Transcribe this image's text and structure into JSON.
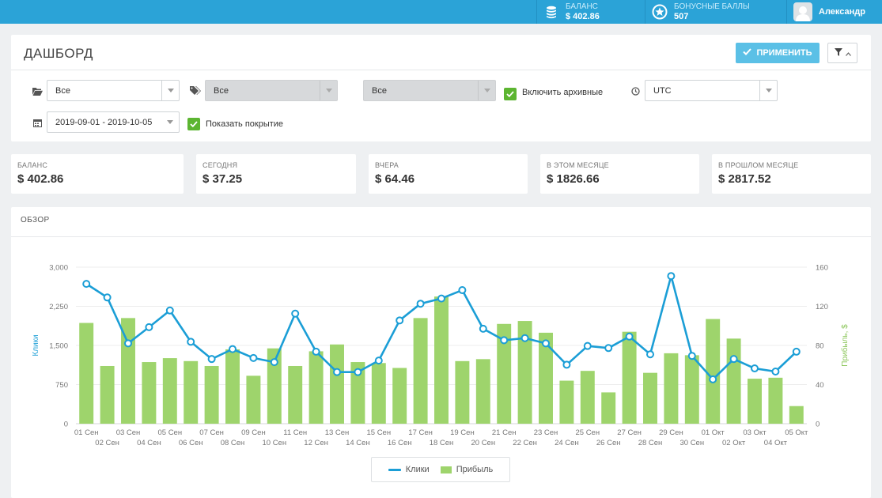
{
  "topbar": {
    "balance_label": "БАЛАНС",
    "balance_value": "$ 402.86",
    "bonus_label": "БОНУСНЫЕ БАЛЛЫ",
    "bonus_value": "507",
    "user_name": "Александр"
  },
  "header": {
    "title": "ДАШБОРД",
    "apply_label": "ПРИМЕНИТЬ"
  },
  "filters": {
    "folder_select": "Все",
    "tag_select": "Все",
    "third_select": "Все",
    "include_archived_label": "Включить архивные",
    "include_archived_checked": true,
    "timezone_select": "UTC",
    "date_range": "2019-09-01 - 2019-10-05",
    "show_coverage_label": "Показать покрытие",
    "show_coverage_checked": true
  },
  "stats": [
    {
      "label": "БАЛАНС",
      "value": "$ 402.86"
    },
    {
      "label": "СЕГОДНЯ",
      "value": "$ 37.25"
    },
    {
      "label": "ВЧЕРА",
      "value": "$ 64.46"
    },
    {
      "label": "В ЭТОМ МЕСЯЦЕ",
      "value": "$ 1826.66"
    },
    {
      "label": "В ПРОШЛОМ МЕСЯЦЕ",
      "value": "$ 2817.52"
    }
  ],
  "overview": {
    "title": "ОБЗОР"
  },
  "colors": {
    "topbar": "#2ba3d7",
    "clicks_line": "#1b9ed6",
    "profit_bar": "#9ed46c",
    "checkbox": "#5cb531",
    "apply_button": "#5bc0e6"
  },
  "chart_data": {
    "type": "bar",
    "ylabel_left": "Клики",
    "ylabel_right": "Прибыль, $",
    "y_left_ticks": [
      "0",
      "750",
      "1,500",
      "2,250",
      "3,000"
    ],
    "y_right_ticks": [
      "0",
      "40",
      "80",
      "120",
      "160"
    ],
    "y_left_range": [
      0,
      3000
    ],
    "y_right_range": [
      0,
      160
    ],
    "categories": [
      "01 Сен",
      "02 Сен",
      "03 Сен",
      "04 Сен",
      "05 Сен",
      "06 Сен",
      "07 Сен",
      "08 Сен",
      "09 Сен",
      "10 Сен",
      "11 Сен",
      "12 Сен",
      "13 Сен",
      "14 Сен",
      "15 Сен",
      "16 Сен",
      "17 Сен",
      "18 Сен",
      "19 Сен",
      "20 Сен",
      "21 Сен",
      "22 Сен",
      "23 Сен",
      "24 Сен",
      "25 Сен",
      "26 Сен",
      "27 Сен",
      "28 Сен",
      "29 Сен",
      "30 Сен",
      "01 Окт",
      "02 Окт",
      "03 Окт",
      "04 Окт",
      "05 Окт"
    ],
    "grid": true,
    "legend": "bottom-center",
    "series": [
      {
        "name": "Клики",
        "type": "line",
        "axis": "left",
        "values": [
          2680,
          2420,
          1540,
          1850,
          2170,
          1570,
          1240,
          1430,
          1260,
          1180,
          2110,
          1380,
          990,
          990,
          1210,
          1980,
          2300,
          2400,
          2560,
          1820,
          1600,
          1640,
          1540,
          1130,
          1490,
          1450,
          1670,
          1330,
          2830,
          1300,
          850,
          1240,
          1060,
          1000,
          1380
        ]
      },
      {
        "name": "Прибыль",
        "type": "bar",
        "axis": "right",
        "values": [
          103,
          59,
          108,
          63,
          67,
          64,
          59,
          76,
          49,
          77,
          59,
          74,
          81,
          63,
          62,
          57,
          108,
          130,
          64,
          66,
          102,
          105,
          93,
          44,
          54,
          32,
          94,
          52,
          72,
          70,
          107,
          87,
          46,
          47,
          18
        ]
      }
    ]
  }
}
